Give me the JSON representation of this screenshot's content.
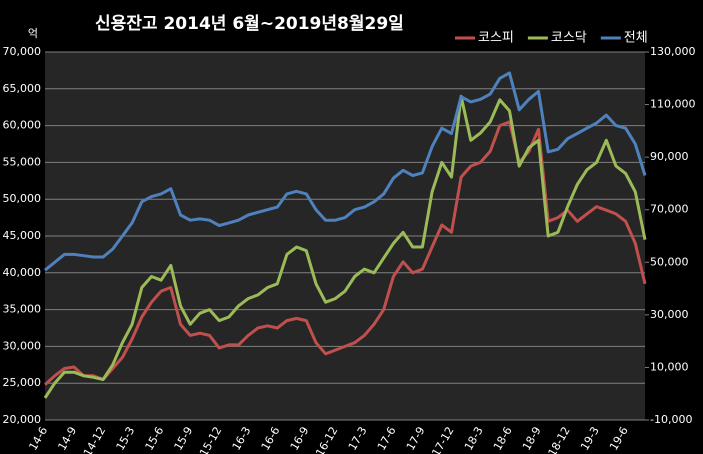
{
  "chart_data": {
    "type": "line",
    "title": "신용잔고  2014년 6월~2019년8월29일",
    "y_label": "억",
    "categories": [
      "14-6",
      null,
      null,
      "14-9",
      null,
      null,
      "14-12",
      null,
      null,
      "15-3",
      null,
      null,
      "15-6",
      null,
      null,
      "15-9",
      null,
      null,
      "15-12",
      null,
      null,
      "16-3",
      null,
      null,
      "16-6",
      null,
      null,
      "16-9",
      null,
      null,
      "16-12",
      null,
      null,
      "17-3",
      null,
      null,
      "17-6",
      null,
      null,
      "17-9",
      null,
      null,
      "17-12",
      null,
      null,
      "18-3",
      null,
      null,
      "18-6",
      null,
      null,
      "18-9",
      null,
      null,
      "18-12",
      null,
      null,
      "19-3",
      null,
      null,
      "19-6",
      null,
      null
    ],
    "series": [
      {
        "name": "코스피",
        "color": "#c0504d",
        "values": [
          24800,
          26000,
          27000,
          27200,
          26000,
          26000,
          25500,
          27000,
          28500,
          31000,
          34000,
          36000,
          37500,
          38000,
          33000,
          31500,
          31800,
          31500,
          29800,
          30200,
          30200,
          31500,
          32500,
          32800,
          32500,
          33500,
          33800,
          33500,
          30500,
          29000,
          29500,
          30000,
          30500,
          31500,
          33000,
          35000,
          39500,
          41500,
          40000,
          40500,
          43500,
          46500,
          45500,
          53000,
          54500,
          55000,
          56500,
          60000,
          60500,
          55000,
          56500,
          59500,
          47000,
          47500,
          48500,
          47000,
          48000,
          49000,
          48500,
          48000,
          47000,
          44000,
          38500
        ]
      },
      {
        "name": "코스닥",
        "color": "#9bbb59",
        "values": [
          23000,
          25000,
          26500,
          26500,
          26000,
          25800,
          25500,
          27500,
          30500,
          33000,
          38000,
          39500,
          39000,
          41000,
          35500,
          33000,
          34500,
          35000,
          33500,
          34000,
          35500,
          36500,
          37000,
          38000,
          38500,
          42500,
          43500,
          43000,
          38500,
          36000,
          36500,
          37500,
          39500,
          40500,
          40000,
          42000,
          44000,
          45500,
          43500,
          43500,
          51000,
          55000,
          53000,
          64000,
          58000,
          59000,
          60500,
          63500,
          62000,
          54500,
          57000,
          58000,
          45000,
          45500,
          49000,
          52000,
          54000,
          55000,
          58000,
          54500,
          53500,
          51000,
          44500
        ]
      },
      {
        "name": "전체",
        "color": "#4f81bd",
        "axis": "y2",
        "values": [
          47000,
          50000,
          53000,
          53000,
          52500,
          52000,
          52000,
          55000,
          60000,
          65000,
          73000,
          75000,
          76000,
          78000,
          68000,
          66000,
          66500,
          66000,
          64000,
          65000,
          66000,
          68000,
          69000,
          70000,
          71000,
          76000,
          77000,
          76000,
          70000,
          66000,
          66000,
          67000,
          70000,
          71000,
          73000,
          76000,
          82000,
          85000,
          83000,
          84000,
          94000,
          101000,
          99000,
          113000,
          111000,
          112000,
          114000,
          120000,
          122000,
          108000,
          112000,
          115000,
          92000,
          93000,
          97000,
          99000,
          101000,
          103000,
          106000,
          102000,
          101000,
          95000,
          83000
        ]
      }
    ],
    "ylim": [
      20000,
      70000
    ],
    "yticks": [
      {
        "value": 20000,
        "label": "20,000"
      },
      {
        "value": 25000,
        "label": "25,000"
      },
      {
        "value": 30000,
        "label": "30,000"
      },
      {
        "value": 35000,
        "label": "35,000"
      },
      {
        "value": 40000,
        "label": "40,000"
      },
      {
        "value": 45000,
        "label": "45,000"
      },
      {
        "value": 50000,
        "label": "50,000"
      },
      {
        "value": 55000,
        "label": "55,000"
      },
      {
        "value": 60000,
        "label": "60,000"
      },
      {
        "value": 65000,
        "label": "65,000"
      },
      {
        "value": 70000,
        "label": "70,000"
      }
    ],
    "y2lim": [
      -10000,
      130000
    ],
    "y2ticks": [
      {
        "value": -10000,
        "label": "-10,000"
      },
      {
        "value": 10000,
        "label": "10,000"
      },
      {
        "value": 30000,
        "label": "30,000"
      },
      {
        "value": 50000,
        "label": "50,000"
      },
      {
        "value": 70000,
        "label": "70,000"
      },
      {
        "value": 90000,
        "label": "90,000"
      },
      {
        "value": 110000,
        "label": "110,000"
      },
      {
        "value": 130000,
        "label": "130,000"
      }
    ],
    "grid": true,
    "legend": "top-right"
  }
}
